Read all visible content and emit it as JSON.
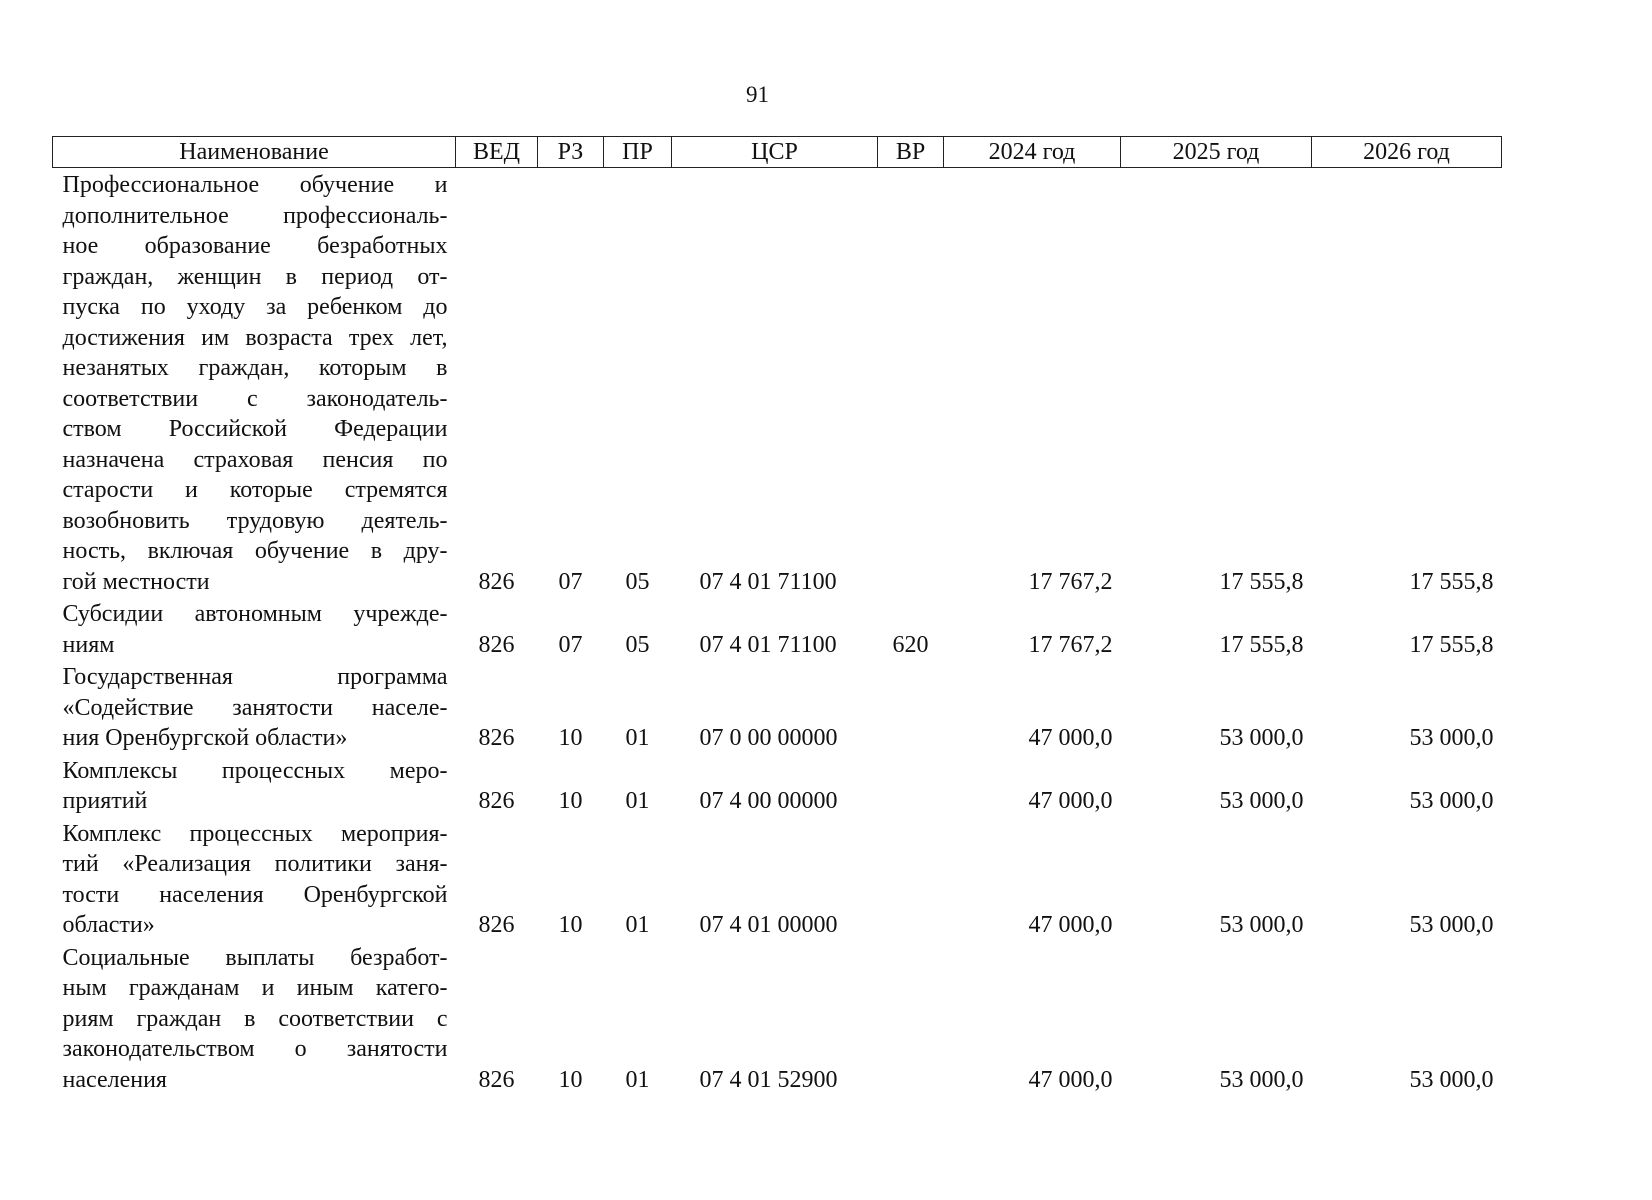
{
  "page_number": "91",
  "table": {
    "headers": [
      "Наименование",
      "ВЕД",
      "РЗ",
      "ПР",
      "ЦСР",
      "ВР",
      "2024 год",
      "2025 год",
      "2026 год"
    ],
    "rows": [
      {
        "name_lines": [
          "Профессиональное обучение и",
          "дополнительное профессиональ-",
          "ное образование безработных",
          "граждан, женщин в период от-",
          "пуска по уходу за ребенком до",
          "достижения им возраста трех лет,",
          "незанятых граждан, которым в",
          "соответствии с законодатель-",
          "ством Российской Федерации",
          "назначена страховая пенсия по",
          "старости и которые стремятся",
          "возобновить трудовую деятель-",
          "ность, включая обучение в дру-",
          "гой местности"
        ],
        "ved": "826",
        "rz": "07",
        "pr": "05",
        "csr": "07 4 01 71100",
        "vr": "",
        "y2024": "17 767,2",
        "y2025": "17 555,8",
        "y2026": "17 555,8"
      },
      {
        "name_lines": [
          "Субсидии автономным учрежде-",
          "ниям"
        ],
        "ved": "826",
        "rz": "07",
        "pr": "05",
        "csr": "07 4 01 71100",
        "vr": "620",
        "y2024": "17 767,2",
        "y2025": "17 555,8",
        "y2026": "17 555,8"
      },
      {
        "name_lines": [
          "Государственная программа",
          "«Содействие занятости населе-",
          "ния Оренбургской области»"
        ],
        "ved": "826",
        "rz": "10",
        "pr": "01",
        "csr": "07 0 00 00000",
        "vr": "",
        "y2024": "47 000,0",
        "y2025": "53 000,0",
        "y2026": "53 000,0"
      },
      {
        "name_lines": [
          "Комплексы процессных меро-",
          "приятий"
        ],
        "ved": "826",
        "rz": "10",
        "pr": "01",
        "csr": "07 4 00 00000",
        "vr": "",
        "y2024": "47 000,0",
        "y2025": "53 000,0",
        "y2026": "53 000,0"
      },
      {
        "name_lines": [
          "Комплекс процессных мероприя-",
          "тий «Реализация политики заня-",
          "тости населения Оренбургской",
          "области»"
        ],
        "ved": "826",
        "rz": "10",
        "pr": "01",
        "csr": "07 4 01 00000",
        "vr": "",
        "y2024": "47 000,0",
        "y2025": "53 000,0",
        "y2026": "53 000,0"
      },
      {
        "name_lines": [
          "Социальные выплаты безработ-",
          "ным гражданам и иным катего-",
          "риям граждан в соответствии с",
          "законодательством о занятости",
          "населения"
        ],
        "ved": "826",
        "rz": "10",
        "pr": "01",
        "csr": "07 4 01 52900",
        "vr": "",
        "y2024": "47 000,0",
        "y2025": "53 000,0",
        "y2026": "53 000,0"
      }
    ]
  }
}
